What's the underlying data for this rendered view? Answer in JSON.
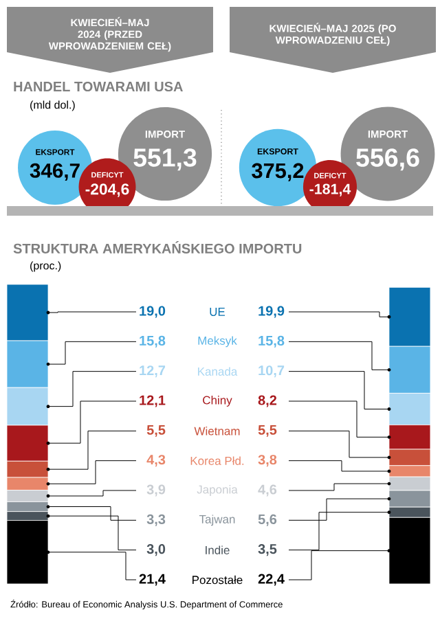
{
  "chart_data": [
    {
      "type": "other",
      "title": "HANDEL TOWARAMI USA",
      "subtitle": "(mld dol.)",
      "categories": [
        "EKSPORT",
        "DEFICYT",
        "IMPORT"
      ],
      "annotations": [
        "KWIECIEŃ–MAJ 2024 (PRZED WPROWADZENIEM CEŁ)",
        "KWIECIEŃ–MAJ 2025 (PO WPROWADZENIU CEŁ)"
      ],
      "series": [
        {
          "colors": [
            "#5bc0eb",
            "#b01c1c",
            "#8f8f8f"
          ],
          "values": [
            346.7,
            -204.6,
            551.3
          ],
          "value_labels": [
            "346,7",
            "-204,6",
            "551,3"
          ]
        },
        {
          "colors": [
            "#5bc0eb",
            "#b01c1c",
            "#8f8f8f"
          ],
          "values": [
            375.2,
            -181.4,
            556.6
          ],
          "value_labels": [
            "375,2",
            "-181,4",
            "556,6"
          ]
        }
      ]
    },
    {
      "type": "bar",
      "stacked": true,
      "title": "STRUKTURA AMERYKAŃSKIEGO IMPORTU",
      "subtitle": "(proc.)",
      "categories": [
        null,
        null
      ],
      "annotations": [
        "Źródło: Bureau of Economic Analysis U.S. Department of Commerce"
      ],
      "series": [
        {
          "name": "Pozostałe",
          "color": "#000000",
          "values": [
            21.4,
            22.4
          ],
          "value_labels": [
            "21,4",
            "22,4"
          ]
        },
        {
          "name": "Indie",
          "color": "#4a545c",
          "values": [
            3.0,
            3.5
          ],
          "value_labels": [
            "3,0",
            "3,5"
          ]
        },
        {
          "name": "Tajwan",
          "color": "#8a949c",
          "values": [
            3.3,
            5.6
          ],
          "value_labels": [
            "3,3",
            "5,6"
          ]
        },
        {
          "name": "Japonia",
          "color": "#c9cdd2",
          "values": [
            3.9,
            4.6
          ],
          "value_labels": [
            "3,9",
            "4,6"
          ]
        },
        {
          "name": "Korea Płd.",
          "color": "#e8866a",
          "values": [
            4.3,
            3.8
          ],
          "value_labels": [
            "4,3",
            "3,8"
          ]
        },
        {
          "name": "Wietnam",
          "color": "#c8503a",
          "values": [
            5.5,
            5.5
          ],
          "value_labels": [
            "5,5",
            "5,5"
          ]
        },
        {
          "name": "Chiny",
          "color": "#a8181c",
          "values": [
            12.1,
            8.2
          ],
          "value_labels": [
            "12,1",
            "8,2"
          ]
        },
        {
          "name": "Kanada",
          "color": "#a8d6f2",
          "values": [
            12.7,
            10.7
          ],
          "value_labels": [
            "12,7",
            "10,7"
          ]
        },
        {
          "name": "Meksyk",
          "color": "#5ab4e6",
          "values": [
            15.8,
            15.8
          ],
          "value_labels": [
            "15,8",
            "15,8"
          ]
        },
        {
          "name": "UE",
          "color": "#0a72b0",
          "values": [
            19.0,
            19.9
          ],
          "value_labels": [
            "19,0",
            "19,9"
          ]
        }
      ]
    }
  ]
}
